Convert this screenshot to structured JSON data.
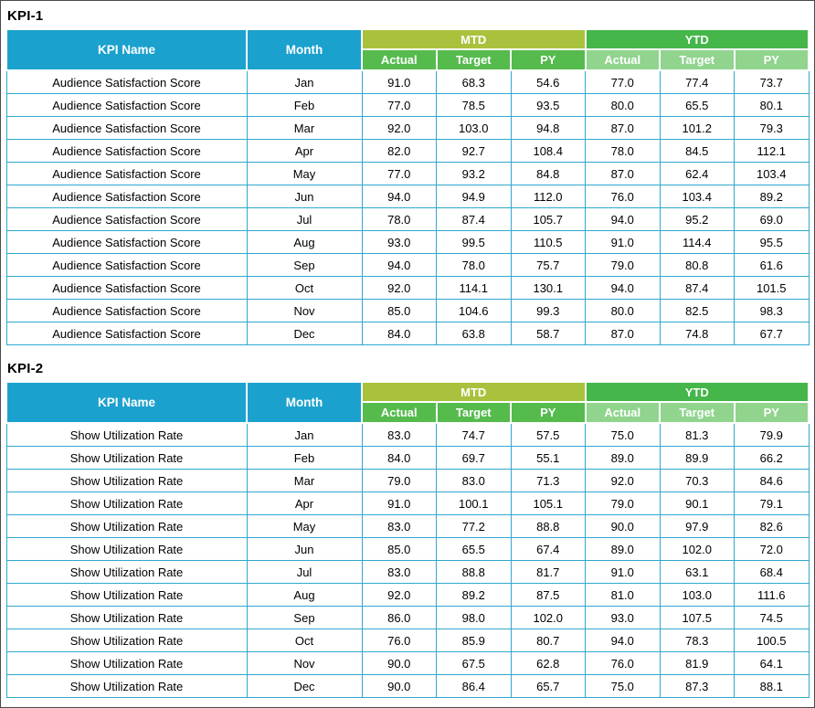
{
  "colors": {
    "header_cyan": "#1BA1CE",
    "mtd_band": "#A9C23D",
    "ytd_band": "#45B649",
    "mtd_sub_header": "#55BB4D",
    "ytd_sub_header": "#90D48E",
    "body_border": "#2FA8D0",
    "header_text": "#FFFFFF",
    "body_text": "#000000"
  },
  "chart_data": [
    {
      "type": "table",
      "title": "KPI-1",
      "kpi_name": "Audience Satisfaction Score",
      "headers": {
        "kpi_name": "KPI Name",
        "month": "Month"
      },
      "column_groups": [
        "MTD",
        "YTD"
      ],
      "sub_columns": [
        "Actual",
        "Target",
        "PY"
      ],
      "rows": [
        {
          "month": "Jan",
          "mtd": [
            "91.0",
            "68.3",
            "54.6"
          ],
          "ytd": [
            "77.0",
            "77.4",
            "73.7"
          ]
        },
        {
          "month": "Feb",
          "mtd": [
            "77.0",
            "78.5",
            "93.5"
          ],
          "ytd": [
            "80.0",
            "65.5",
            "80.1"
          ]
        },
        {
          "month": "Mar",
          "mtd": [
            "92.0",
            "103.0",
            "94.8"
          ],
          "ytd": [
            "87.0",
            "101.2",
            "79.3"
          ]
        },
        {
          "month": "Apr",
          "mtd": [
            "82.0",
            "92.7",
            "108.4"
          ],
          "ytd": [
            "78.0",
            "84.5",
            "112.1"
          ]
        },
        {
          "month": "May",
          "mtd": [
            "77.0",
            "93.2",
            "84.8"
          ],
          "ytd": [
            "87.0",
            "62.4",
            "103.4"
          ]
        },
        {
          "month": "Jun",
          "mtd": [
            "94.0",
            "94.9",
            "112.0"
          ],
          "ytd": [
            "76.0",
            "103.4",
            "89.2"
          ]
        },
        {
          "month": "Jul",
          "mtd": [
            "78.0",
            "87.4",
            "105.7"
          ],
          "ytd": [
            "94.0",
            "95.2",
            "69.0"
          ]
        },
        {
          "month": "Aug",
          "mtd": [
            "93.0",
            "99.5",
            "110.5"
          ],
          "ytd": [
            "91.0",
            "114.4",
            "95.5"
          ]
        },
        {
          "month": "Sep",
          "mtd": [
            "94.0",
            "78.0",
            "75.7"
          ],
          "ytd": [
            "79.0",
            "80.8",
            "61.6"
          ]
        },
        {
          "month": "Oct",
          "mtd": [
            "92.0",
            "114.1",
            "130.1"
          ],
          "ytd": [
            "94.0",
            "87.4",
            "101.5"
          ]
        },
        {
          "month": "Nov",
          "mtd": [
            "85.0",
            "104.6",
            "99.3"
          ],
          "ytd": [
            "80.0",
            "82.5",
            "98.3"
          ]
        },
        {
          "month": "Dec",
          "mtd": [
            "84.0",
            "63.8",
            "58.7"
          ],
          "ytd": [
            "87.0",
            "74.8",
            "67.7"
          ]
        }
      ]
    },
    {
      "type": "table",
      "title": "KPI-2",
      "kpi_name": "Show Utilization Rate",
      "headers": {
        "kpi_name": "KPI Name",
        "month": "Month"
      },
      "column_groups": [
        "MTD",
        "YTD"
      ],
      "sub_columns": [
        "Actual",
        "Target",
        "PY"
      ],
      "rows": [
        {
          "month": "Jan",
          "mtd": [
            "83.0",
            "74.7",
            "57.5"
          ],
          "ytd": [
            "75.0",
            "81.3",
            "79.9"
          ]
        },
        {
          "month": "Feb",
          "mtd": [
            "84.0",
            "69.7",
            "55.1"
          ],
          "ytd": [
            "89.0",
            "89.9",
            "66.2"
          ]
        },
        {
          "month": "Mar",
          "mtd": [
            "79.0",
            "83.0",
            "71.3"
          ],
          "ytd": [
            "92.0",
            "70.3",
            "84.6"
          ]
        },
        {
          "month": "Apr",
          "mtd": [
            "91.0",
            "100.1",
            "105.1"
          ],
          "ytd": [
            "79.0",
            "90.1",
            "79.1"
          ]
        },
        {
          "month": "May",
          "mtd": [
            "83.0",
            "77.2",
            "88.8"
          ],
          "ytd": [
            "90.0",
            "97.9",
            "82.6"
          ]
        },
        {
          "month": "Jun",
          "mtd": [
            "85.0",
            "65.5",
            "67.4"
          ],
          "ytd": [
            "89.0",
            "102.0",
            "72.0"
          ]
        },
        {
          "month": "Jul",
          "mtd": [
            "83.0",
            "88.8",
            "81.7"
          ],
          "ytd": [
            "91.0",
            "63.1",
            "68.4"
          ]
        },
        {
          "month": "Aug",
          "mtd": [
            "92.0",
            "89.2",
            "87.5"
          ],
          "ytd": [
            "81.0",
            "103.0",
            "111.6"
          ]
        },
        {
          "month": "Sep",
          "mtd": [
            "86.0",
            "98.0",
            "102.0"
          ],
          "ytd": [
            "93.0",
            "107.5",
            "74.5"
          ]
        },
        {
          "month": "Oct",
          "mtd": [
            "76.0",
            "85.9",
            "80.7"
          ],
          "ytd": [
            "94.0",
            "78.3",
            "100.5"
          ]
        },
        {
          "month": "Nov",
          "mtd": [
            "90.0",
            "67.5",
            "62.8"
          ],
          "ytd": [
            "76.0",
            "81.9",
            "64.1"
          ]
        },
        {
          "month": "Dec",
          "mtd": [
            "90.0",
            "86.4",
            "65.7"
          ],
          "ytd": [
            "75.0",
            "87.3",
            "88.1"
          ]
        }
      ]
    }
  ]
}
